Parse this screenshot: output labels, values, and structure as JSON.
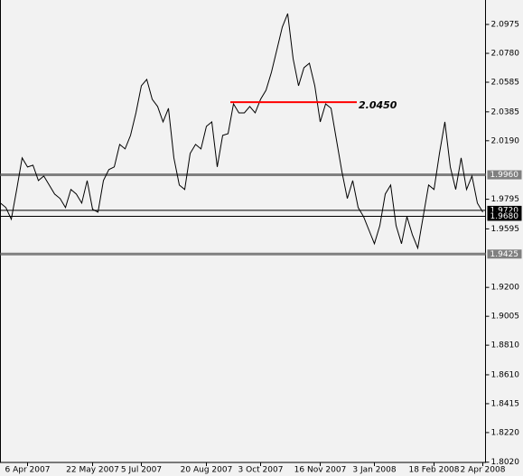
{
  "chart_data": {
    "type": "line",
    "categories": [
      null,
      null,
      null,
      null,
      null,
      "6 Apr 2007",
      null,
      null,
      null,
      null,
      null,
      null,
      null,
      null,
      null,
      null,
      null,
      "22 May 2007",
      null,
      null,
      null,
      null,
      null,
      null,
      null,
      null,
      "5 Jul 2007",
      null,
      null,
      null,
      null,
      null,
      null,
      null,
      null,
      null,
      null,
      null,
      "20 Aug 2007",
      null,
      null,
      null,
      null,
      null,
      null,
      null,
      null,
      null,
      "3 Oct 2007",
      null,
      null,
      null,
      null,
      null,
      null,
      null,
      null,
      null,
      null,
      "16 Nov 2007",
      null,
      null,
      null,
      null,
      null,
      null,
      null,
      null,
      null,
      "3 Jan 2008",
      null,
      null,
      null,
      null,
      null,
      null,
      null,
      null,
      null,
      null,
      "18 Feb 2008",
      null,
      null,
      null,
      null,
      null,
      null,
      null,
      null,
      "2 Apr 2008"
    ],
    "series": [
      {
        "color": "#000000",
        "values": [
          1.9769,
          1.9739,
          1.966,
          1.9861,
          2.0074,
          2.0013,
          2.0025,
          1.9921,
          1.9952,
          1.9891,
          1.983,
          1.98,
          1.9739,
          1.9861,
          1.983,
          1.9769,
          1.9921,
          1.9727,
          1.9708,
          1.9921,
          1.9995,
          2.0013,
          2.0165,
          2.0135,
          2.0226,
          2.0378,
          2.0561,
          2.0604,
          2.047,
          2.0421,
          2.0317,
          2.0409,
          2.0074,
          1.9891,
          1.9861,
          2.0104,
          2.0165,
          2.0135,
          2.0287,
          2.0317,
          2.0013,
          2.0226,
          2.0238,
          2.0439,
          2.0378,
          2.0378,
          2.0421,
          2.0378,
          2.047,
          2.0531,
          2.0652,
          2.0804,
          2.0957,
          2.1048,
          2.0744,
          2.0561,
          2.0683,
          2.0713,
          2.0561,
          2.0317,
          2.0439,
          2.0409,
          2.0195,
          1.9982,
          1.98,
          1.9921,
          1.9739,
          1.9678,
          1.9586,
          1.9495,
          1.9617,
          1.983,
          1.9891,
          1.9617,
          1.9495,
          1.9678,
          1.9556,
          1.9465,
          1.9678,
          1.9891,
          1.9861,
          2.0104,
          2.0317,
          2.0013,
          1.9861,
          2.0074,
          1.9861,
          1.9952,
          1.9769,
          1.9708
        ]
      }
    ],
    "ylim": [
      1.8,
      2.114
    ],
    "yticks": [
      2.0975,
      {
        "value": 2.078,
        "label": "2.0780"
      },
      2.0585,
      2.0385,
      {
        "value": 2.019,
        "label": "2.0190"
      },
      1.9795,
      1.9595,
      {
        "value": 1.92,
        "label": "1.9200"
      },
      1.9005,
      {
        "value": 1.881,
        "label": "1.8810"
      },
      {
        "value": 1.861,
        "label": "1.8610"
      },
      1.8415,
      {
        "value": 1.822,
        "label": "1.8220"
      },
      {
        "value": 1.802,
        "label": "1.8020"
      }
    ],
    "levels": [
      {
        "value": 1.996,
        "label": "1.9960",
        "color": "#808080"
      },
      {
        "value": 1.9425,
        "label": "1.9425",
        "color": "#808080"
      }
    ],
    "price_lines": [
      {
        "value": 1.972,
        "label": "1.9720",
        "color": "#000000"
      },
      {
        "value": 1.968,
        "label": "1.9680",
        "color": "#000000"
      }
    ],
    "annotation": {
      "value": 2.045,
      "label": "2.0450",
      "color": "#ff0000"
    }
  }
}
